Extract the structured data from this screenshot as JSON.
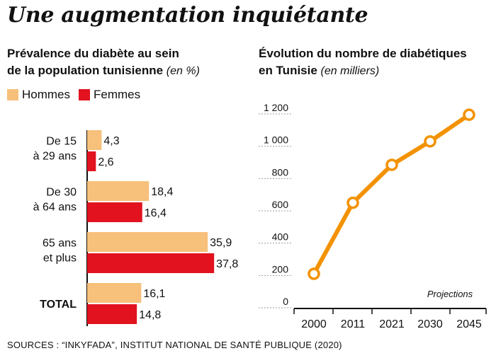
{
  "title": "Une augmentation inquiétante",
  "source": "SOURCES : “INKYFADA”, INSTITUT NATIONAL DE SANTÉ PUBLIQUE (2020)",
  "left": {
    "title_line1": "Prévalence du diabète au sein",
    "title_line2": "de la population tunisienne",
    "unit": "(en %)"
  },
  "right": {
    "title_line1": "Évolution du nombre de diabétiques",
    "title_line2": "en Tunisie",
    "unit": "(en milliers)",
    "annotation": "Projections"
  },
  "colors": {
    "hommes": "#f7c07b",
    "femmes": "#e2121f",
    "line": "#f39200"
  },
  "chart_data": [
    {
      "type": "bar",
      "orientation": "horizontal",
      "categories": [
        [
          "De 15",
          "à 29 ans"
        ],
        [
          "De 30",
          "à 64 ans"
        ],
        [
          "65 ans",
          "et plus"
        ],
        [
          "TOTAL"
        ]
      ],
      "series": [
        {
          "name": "Hommes",
          "values": [
            4.3,
            18.4,
            35.9,
            16.1
          ],
          "labels": [
            "4,3",
            "18,4",
            "35,9",
            "16,1"
          ]
        },
        {
          "name": "Femmes",
          "values": [
            2.6,
            16.4,
            37.8,
            14.8
          ],
          "labels": [
            "2,6",
            "16,4",
            "37,8",
            "14,8"
          ]
        }
      ],
      "xlim": [
        0,
        40
      ],
      "legend": "top-left"
    },
    {
      "type": "line",
      "x": [
        "2000",
        "2011",
        "2021",
        "2030",
        "2045"
      ],
      "values": [
        175,
        615,
        850,
        995,
        1160
      ],
      "ylim": [
        0,
        1200
      ],
      "yticks": [
        0,
        200,
        400,
        600,
        800,
        1000,
        1200
      ],
      "ytick_labels": [
        "0",
        "200",
        "400",
        "600",
        "800",
        "1 000",
        "1 200"
      ],
      "grid": true
    }
  ]
}
